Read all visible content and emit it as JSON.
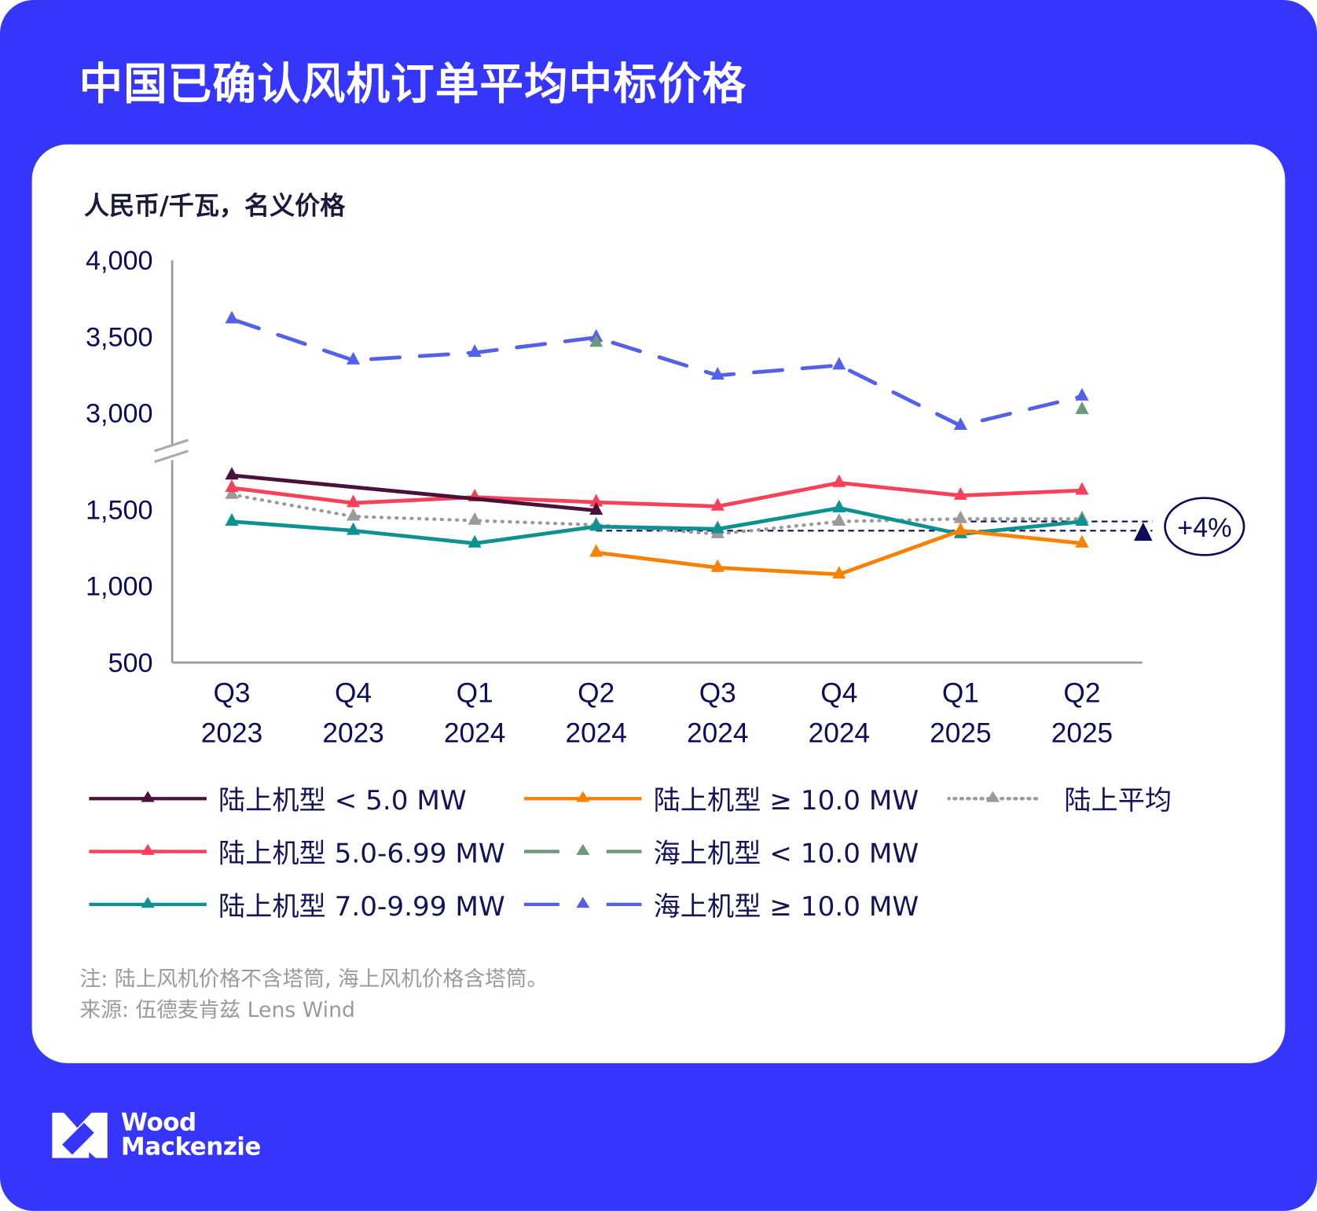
{
  "title": "中国已确认风机订单平均中标价格",
  "chart_data": {
    "type": "line",
    "ylabel": "人民币/千瓦，名义价格",
    "y_axis": {
      "broken": true,
      "lower_ticks": [
        "500",
        "1,000",
        "1,500"
      ],
      "upper_ticks": [
        "3,000",
        "3,500",
        "4,000"
      ],
      "lower_range": [
        500,
        1500
      ],
      "upper_range": [
        3000,
        4000
      ]
    },
    "categories": [
      [
        "Q3",
        "2023"
      ],
      [
        "Q4",
        "2023"
      ],
      [
        "Q1",
        "2024"
      ],
      [
        "Q2",
        "2024"
      ],
      [
        "Q3",
        "2024"
      ],
      [
        "Q4",
        "2024"
      ],
      [
        "Q1",
        "2025"
      ],
      [
        "Q2",
        "2025"
      ]
    ],
    "series": [
      {
        "name": "陆上机型 < 5.0 MW",
        "color": "#4a1238",
        "style": "solid",
        "values": [
          1725,
          null,
          null,
          1495,
          null,
          null,
          null,
          null
        ]
      },
      {
        "name": "陆上机型 5.0-6.99 MW",
        "color": "#f7405a",
        "style": "solid",
        "values": [
          1643,
          1544,
          1582,
          1549,
          1522,
          1676,
          1593,
          1626
        ]
      },
      {
        "name": "陆上机型 7.0-9.99 MW",
        "color": "#0d9191",
        "style": "solid",
        "values": [
          1423,
          1363,
          1280,
          1390,
          1374,
          1511,
          1341,
          1423
        ]
      },
      {
        "name": "陆上机型 ≥ 10.0 MW",
        "color": "#f98000",
        "style": "solid",
        "values": [
          null,
          null,
          null,
          1220,
          1121,
          1077,
          1363,
          1280
        ]
      },
      {
        "name": "海上机型 < 10.0 MW",
        "color": "#6a9a7a",
        "style": "dashed",
        "values": [
          null,
          null,
          null,
          3462,
          null,
          null,
          null,
          3022
        ]
      },
      {
        "name": "海上机型 ≥ 10.0 MW",
        "color": "#5560e8",
        "style": "dashed",
        "values": [
          3615,
          3346,
          3396,
          3495,
          3247,
          3313,
          2918,
          3110
        ]
      },
      {
        "name": "陆上平均",
        "color": "#9a9a9a",
        "style": "dotted",
        "values": [
          1599,
          1456,
          1429,
          1401,
          1341,
          1423,
          1440,
          1440
        ]
      }
    ],
    "annotation": {
      "text": "+4%",
      "color": "#0c0c5a"
    },
    "legend_position": "bottom",
    "grid": false
  },
  "legend": [
    "陆上机型 < 5.0 MW",
    "陆上机型 ≥ 10.0 MW",
    "陆上平均",
    "陆上机型 5.0-6.99 MW",
    "海上机型 < 10.0 MW",
    "陆上机型 7.0-9.99 MW",
    "海上机型 ≥ 10.0 MW"
  ],
  "notes": {
    "note": "注: 陆上风机价格不含塔筒, 海上风机价格含塔筒。",
    "source": "来源: 伍德麦肯兹 Lens Wind"
  },
  "brand": {
    "name": "Wood Mackenzie",
    "line1": "Wood",
    "line2": "Mackenzie"
  },
  "colors": {
    "background": "#3535fb",
    "card": "#ffffff",
    "axis_text": "#0c0c5a"
  }
}
